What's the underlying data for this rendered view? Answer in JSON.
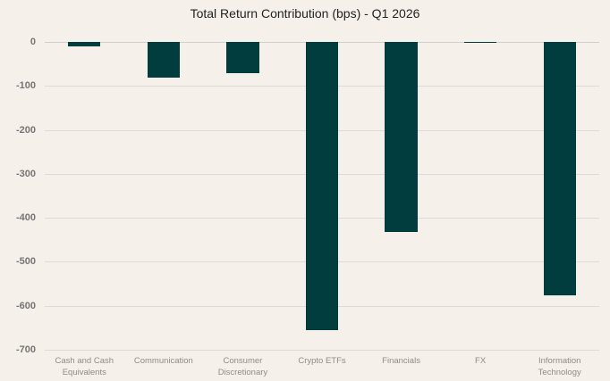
{
  "figure": {
    "background": "#f5f0ea"
  },
  "chart_data": {
    "type": "bar",
    "title": "Total Return Contribution (bps) - Q1 2026",
    "categories": [
      "Cash and Cash Equivalents",
      "Communication",
      "Consumer Discretionary",
      "Crypto ETFs",
      "Financials",
      "FX",
      "Information Technology"
    ],
    "values": [
      -10,
      -82,
      -72,
      -655,
      -432,
      -3,
      -577
    ],
    "xlabel": "",
    "ylabel": "",
    "ylim": [
      -700,
      0
    ],
    "yticks": [
      0,
      -100,
      -200,
      -300,
      -400,
      -500,
      -600,
      -700
    ],
    "grid": true,
    "legend": false,
    "bar_color": "#013c3e",
    "gridline_color": "#dedad7",
    "zeroline_color": "#d2cecb",
    "title_color": "#222222",
    "ytick_color": "#757575",
    "xtick_color": "#8f8b88"
  }
}
